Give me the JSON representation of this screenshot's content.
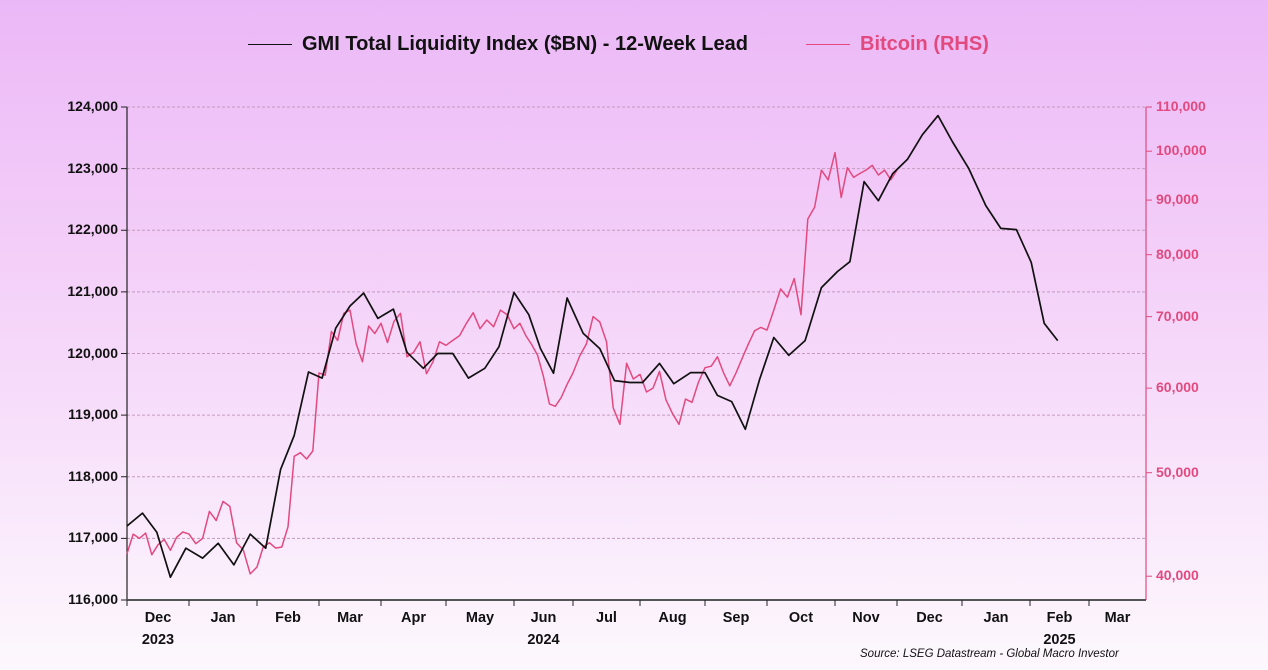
{
  "chart_data": {
    "type": "line",
    "title": "",
    "legend": {
      "placement": "top-center",
      "entries": [
        {
          "label": "GMI Total Liquidity Index ($BN) - 12-Week Lead",
          "color": "#111111"
        },
        {
          "label": "Bitcoin (RHS)",
          "color": "#e24a7f"
        }
      ]
    },
    "source": "Source: LSEG Datastream - Global Macro Investor",
    "grid": true,
    "x_axis": {
      "start": "2023-12-01",
      "end": "2025-03-31",
      "month_labels": [
        "Dec",
        "Jan",
        "Feb",
        "Mar",
        "Apr",
        "May",
        "Jun",
        "Jul",
        "Aug",
        "Sep",
        "Oct",
        "Nov",
        "Dec",
        "Jan",
        "Feb",
        "Mar"
      ],
      "year_labels": [
        {
          "label": "2023",
          "under": "Dec"
        },
        {
          "label": "2024",
          "under": "Jun"
        },
        {
          "label": "2025",
          "under": "Feb"
        }
      ]
    },
    "y_left": {
      "label": "",
      "range": [
        116000,
        124000
      ],
      "ticks": [
        "116,000",
        "117,000",
        "118,000",
        "119,000",
        "120,000",
        "121,000",
        "122,000",
        "123,000",
        "124,000"
      ],
      "color": "#111111"
    },
    "y_right": {
      "label": "RHS",
      "scale": "log",
      "range": [
        38000,
        110000
      ],
      "ticks": [
        {
          "value": 40000,
          "label": "40,000"
        },
        {
          "value": 50000,
          "label": "50,000"
        },
        {
          "value": 60000,
          "label": "60,000"
        },
        {
          "value": 70000,
          "label": "70,000"
        },
        {
          "value": 80000,
          "label": "80,000"
        },
        {
          "value": 90000,
          "label": "90,000"
        },
        {
          "value": 100000,
          "label": "100,000"
        },
        {
          "value": 110000,
          "label": "110,000"
        }
      ],
      "color": "#e24a7f"
    },
    "series": [
      {
        "name": "GMI Total Liquidity Index ($BN) - 12-Week Lead",
        "axis": "left",
        "color": "#111111",
        "x_months": [
          0,
          0.25,
          0.48,
          0.7,
          0.95,
          1.2,
          1.43,
          1.66,
          1.9,
          2.14,
          2.38,
          2.6,
          2.83,
          3.05,
          3.27,
          3.5,
          3.72,
          3.95,
          4.19,
          4.4,
          4.65,
          4.87,
          5.1,
          5.33,
          5.57,
          5.78,
          6.0,
          6.25,
          6.45,
          6.67,
          6.9,
          7.15,
          7.4,
          7.62,
          7.85,
          8.04,
          8.3,
          8.52,
          8.78,
          9.0,
          9.2,
          9.43,
          9.65,
          9.88,
          10.1,
          10.32,
          10.56,
          10.8,
          11.04,
          11.24,
          11.47,
          11.7,
          11.93,
          12.16,
          12.39,
          12.63,
          12.85,
          13.1,
          13.35,
          13.57,
          13.8,
          14.02,
          14.24,
          14.47
        ],
        "values": [
          117200,
          117410,
          117100,
          116370,
          116840,
          116680,
          116920,
          116570,
          117070,
          116840,
          118120,
          118670,
          119700,
          119600,
          120410,
          120770,
          120980,
          120570,
          120720,
          120020,
          119760,
          120000,
          120000,
          119600,
          119760,
          120110,
          120990,
          120630,
          120080,
          119680,
          120900,
          120330,
          120080,
          119560,
          119530,
          119530,
          119840,
          119510,
          119690,
          119690,
          119320,
          119220,
          118770,
          119580,
          120260,
          119970,
          120210,
          121070,
          121330,
          121490,
          122790,
          122480,
          122920,
          123150,
          123550,
          123860,
          123440,
          123000,
          122400,
          122030,
          122010,
          121480,
          120490,
          120210
        ]
      },
      {
        "name": "Bitcoin (RHS)",
        "axis": "right",
        "color": "#e24a7f",
        "x_months": [
          0,
          0.1,
          0.2,
          0.3,
          0.4,
          0.5,
          0.6,
          0.7,
          0.8,
          0.9,
          1.0,
          1.1,
          1.2,
          1.3,
          1.4,
          1.5,
          1.6,
          1.7,
          1.8,
          1.9,
          2.0,
          2.1,
          2.2,
          2.3,
          2.4,
          2.5,
          2.6,
          2.7,
          2.8,
          2.9,
          3.0,
          3.1,
          3.2,
          3.3,
          3.4,
          3.5,
          3.6,
          3.7,
          3.8,
          3.9,
          4.0,
          4.1,
          4.2,
          4.3,
          4.4,
          4.5,
          4.6,
          4.7,
          4.8,
          4.9,
          5.0,
          5.1,
          5.2,
          5.3,
          5.4,
          5.5,
          5.6,
          5.7,
          5.8,
          5.9,
          6.0,
          6.1,
          6.2,
          6.3,
          6.4,
          6.5,
          6.6,
          6.7,
          6.8,
          6.9,
          7.0,
          7.1,
          7.2,
          7.3,
          7.4,
          7.5,
          7.6,
          7.7,
          7.8,
          7.9,
          8.0,
          8.1,
          8.2,
          8.3,
          8.4,
          8.5,
          8.6,
          8.7,
          8.8,
          8.9,
          9.0,
          9.1,
          9.2,
          9.3,
          9.4,
          9.5,
          9.6,
          9.7,
          9.8,
          9.9,
          10.0,
          10.1,
          10.2,
          10.3,
          10.4,
          10.5,
          10.6,
          10.7,
          10.8,
          10.9,
          11.0,
          11.1,
          11.2,
          11.3,
          11.4,
          11.5,
          11.6,
          11.7,
          11.8,
          11.9,
          12.0
        ],
        "values": [
          42000,
          43800,
          43400,
          43900,
          41900,
          42800,
          43300,
          42300,
          43500,
          44000,
          43800,
          42900,
          43400,
          46000,
          45100,
          47000,
          46500,
          43000,
          42300,
          40200,
          40800,
          42600,
          43000,
          42500,
          42600,
          44500,
          51800,
          52200,
          51500,
          52400,
          62000,
          61700,
          67800,
          66500,
          70500,
          71000,
          66000,
          63500,
          68600,
          67500,
          69000,
          66200,
          69300,
          70500,
          64200,
          64800,
          66300,
          61900,
          63500,
          66300,
          65800,
          66500,
          67200,
          69000,
          70600,
          68200,
          69500,
          68500,
          71000,
          70300,
          68200,
          69000,
          67200,
          65900,
          64400,
          61500,
          58000,
          57700,
          58800,
          60500,
          62000,
          64300,
          66000,
          70000,
          69200,
          66300,
          57500,
          55500,
          63300,
          61200,
          61800,
          59500,
          60000,
          62200,
          58500,
          56800,
          55500,
          58600,
          58200,
          60800,
          62700,
          62900,
          64200,
          62000,
          60300,
          62000,
          64000,
          66000,
          67900,
          68400,
          68000,
          71000,
          74300,
          73000,
          76000,
          70300,
          86400,
          88600,
          96000,
          94000,
          99700,
          90500,
          96500,
          94500,
          95300,
          96000,
          97000,
          95000,
          96000,
          94000,
          96000
        ]
      }
    ]
  }
}
